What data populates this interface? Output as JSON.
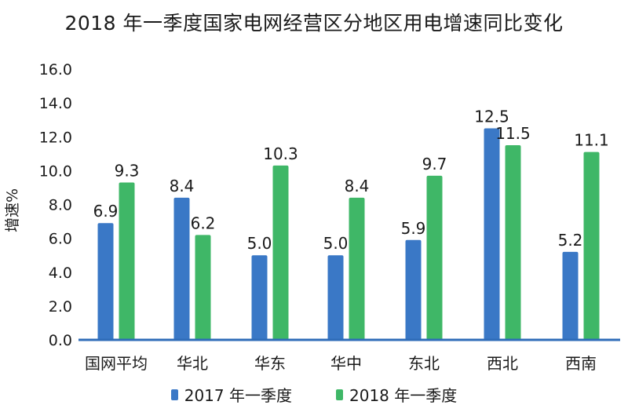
{
  "chart_data": {
    "type": "bar",
    "title": "2018 年一季度国家电网经营区分地区用电增速同比变化",
    "xlabel": "",
    "ylabel": "增速%",
    "ylim": [
      0,
      16
    ],
    "yticks": [
      "0.0",
      "2.0",
      "4.0",
      "6.0",
      "8.0",
      "10.0",
      "12.0",
      "14.0",
      "16.0"
    ],
    "grid": false,
    "legend_position": "bottom",
    "categories": [
      "国网平均",
      "华北",
      "华东",
      "华中",
      "东北",
      "西北",
      "西南"
    ],
    "series": [
      {
        "name": "2017 年一季度",
        "color": "#3a78c6",
        "values": [
          6.9,
          8.4,
          5.0,
          5.0,
          5.9,
          12.5,
          5.2
        ],
        "labels": [
          "6.9",
          "8.4",
          "5.0",
          "5.0",
          "5.9",
          "12.5",
          "5.2"
        ]
      },
      {
        "name": "2018 年一季度",
        "color": "#3fb767",
        "values": [
          9.3,
          6.2,
          10.3,
          8.4,
          9.7,
          11.5,
          11.1
        ],
        "labels": [
          "9.3",
          "6.2",
          "10.3",
          "8.4",
          "9.7",
          "11.5",
          "11.1"
        ]
      }
    ]
  }
}
